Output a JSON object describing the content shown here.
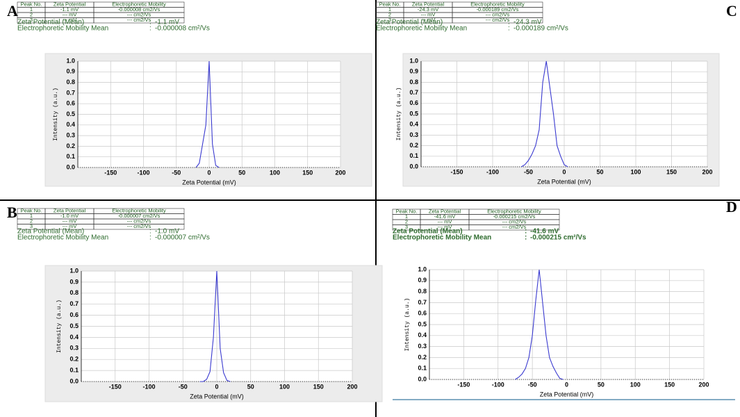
{
  "chart_data": [
    {
      "type": "line",
      "panel": "A",
      "table": {
        "header": [
          "Peak No.",
          "Zeta Potential",
          "Electrophoretic Mobility"
        ],
        "rows": [
          [
            "1",
            "-1.1 mV",
            "-0.000008 cm2/Vs"
          ],
          [
            "2",
            "--- mV",
            "--- cm2/Vs"
          ],
          [
            "3",
            "--- mV",
            "--- cm2/Vs"
          ]
        ]
      },
      "summary": [
        {
          "label": "Zeta Potential (Mean)",
          "separator": ":",
          "value": "-1.1 mV"
        },
        {
          "label": "Electrophoretic Mobility Mean",
          "separator": ":",
          "value": "-0.000008 cm²/Vs"
        }
      ],
      "xlabel": "Zeta Potential (mV)",
      "ylabel": "Intensity (a.u.)",
      "color": "#3a3ad0",
      "grid": true,
      "x": [
        -20,
        -15,
        -5,
        0,
        5,
        10,
        15
      ],
      "values": [
        0,
        0.04,
        0.4,
        1.0,
        0.22,
        0.02,
        0
      ],
      "xlim": [
        -200,
        200
      ],
      "xticks": [
        -150,
        -100,
        -50,
        0,
        50,
        100,
        150,
        200
      ],
      "ylim": [
        0,
        1
      ],
      "yticks": [
        {
          "value": 0,
          "label": "0.0"
        },
        {
          "value": 0.1,
          "label": "0.1"
        },
        {
          "value": 0.2,
          "label": "0.2"
        },
        {
          "value": 0.3,
          "label": "0.3"
        },
        {
          "value": 0.4,
          "label": "0.4"
        },
        {
          "value": 0.5,
          "label": "0.5"
        },
        {
          "value": 0.6,
          "label": "0.6"
        },
        {
          "value": 0.7,
          "label": "0.7"
        },
        {
          "value": 0.8,
          "label": "0.8"
        },
        {
          "value": 0.9,
          "label": "0.9"
        },
        {
          "value": 1,
          "label": "1.0"
        }
      ]
    },
    {
      "type": "line",
      "panel": "C",
      "table": {
        "header": [
          "Peak No.",
          "Zeta Potential",
          "Electrophoretic Mobility"
        ],
        "rows": [
          [
            "1",
            "-24.3 mV",
            "-0.000189 cm2/Vs"
          ],
          [
            "2",
            "--- mV",
            "--- cm2/Vs"
          ],
          [
            "3",
            "--- mV",
            "--- cm2/Vs"
          ]
        ]
      },
      "summary": [
        {
          "label": "Zeta Potential (Mean)",
          "separator": ":",
          "value": "-24.3 mV"
        },
        {
          "label": "Electrophoretic Mobility Mean",
          "separator": ":",
          "value": "-0.000189 cm²/Vs"
        }
      ],
      "xlabel": "Zeta Potential (mV)",
      "ylabel": "Intensity (a.u.)",
      "color": "#3a3ad0",
      "grid": true,
      "x": [
        -60,
        -55,
        -50,
        -45,
        -40,
        -35,
        -30,
        -25,
        -20,
        -15,
        -10,
        -5,
        0,
        5
      ],
      "values": [
        0,
        0.02,
        0.06,
        0.12,
        0.2,
        0.35,
        0.8,
        1.0,
        0.75,
        0.5,
        0.2,
        0.1,
        0.02,
        0
      ],
      "xlim": [
        -200,
        200
      ],
      "xticks": [
        -150,
        -100,
        -50,
        0,
        50,
        100,
        150,
        200
      ],
      "ylim": [
        0,
        1
      ],
      "yticks": [
        {
          "value": 0,
          "label": "0.0"
        },
        {
          "value": 0.1,
          "label": "0.1"
        },
        {
          "value": 0.2,
          "label": "0.2"
        },
        {
          "value": 0.3,
          "label": "0.3"
        },
        {
          "value": 0.4,
          "label": "0.4"
        },
        {
          "value": 0.5,
          "label": "0.5"
        },
        {
          "value": 0.6,
          "label": "0.6"
        },
        {
          "value": 0.7,
          "label": "0.7"
        },
        {
          "value": 0.8,
          "label": "0.8"
        },
        {
          "value": 0.9,
          "label": "0.9"
        },
        {
          "value": 1,
          "label": "1.0"
        }
      ]
    },
    {
      "type": "line",
      "panel": "B",
      "table": {
        "header": [
          "Peak No.",
          "Zeta Potential",
          "Electrophoretic Mobility"
        ],
        "rows": [
          [
            "1",
            "-1.0 mV",
            "-0.000007 cm2/Vs"
          ],
          [
            "2",
            "--- mV",
            "--- cm2/Vs"
          ],
          [
            "3",
            "--- mV",
            "--- cm2/Vs"
          ]
        ]
      },
      "summary": [
        {
          "label": "Zeta Potential (Mean)",
          "separator": ":",
          "value": "-1.0 mV"
        },
        {
          "label": "Electrophoretic Mobility Mean",
          "separator": ":",
          "value": "-0.000007 cm²/Vs"
        }
      ],
      "xlabel": "Zeta Potential (mV)",
      "ylabel": "Intensity (a.u.)",
      "color": "#3a3ad0",
      "grid": true,
      "x": [
        -25,
        -20,
        -15,
        -10,
        -5,
        0,
        5,
        10,
        15,
        20
      ],
      "values": [
        0,
        0,
        0.02,
        0.09,
        0.4,
        1.0,
        0.3,
        0.08,
        0.01,
        0
      ],
      "xlim": [
        -200,
        200
      ],
      "xticks": [
        -150,
        -100,
        -50,
        0,
        50,
        100,
        150,
        200
      ],
      "ylim": [
        0,
        1
      ],
      "yticks": [
        {
          "value": 0,
          "label": "0.0"
        },
        {
          "value": 0.1,
          "label": "0.1"
        },
        {
          "value": 0.2,
          "label": "0.2"
        },
        {
          "value": 0.3,
          "label": "0.3"
        },
        {
          "value": 0.4,
          "label": "0.4"
        },
        {
          "value": 0.5,
          "label": "0.5"
        },
        {
          "value": 0.6,
          "label": "0.6"
        },
        {
          "value": 0.7,
          "label": "0.7"
        },
        {
          "value": 0.8,
          "label": "0.8"
        },
        {
          "value": 0.9,
          "label": "0.9"
        },
        {
          "value": 1,
          "label": "1.0"
        }
      ]
    },
    {
      "type": "line",
      "panel": "D",
      "table": {
        "header": [
          "Peak No.",
          "Zeta Potential",
          "Electrophoretic Mobility"
        ],
        "rows": [
          [
            "1",
            "-41.6 mV",
            "-0.000215 cm2/Vs"
          ],
          [
            "2",
            "--- mV",
            "--- cm2/Vs"
          ],
          [
            "3",
            "--- mV",
            "--- cm2/Vs"
          ]
        ]
      },
      "summary": [
        {
          "label": "Zeta Potential (Mean)",
          "separator": ":",
          "value": "-41.6 mV"
        },
        {
          "label": "Electrophoretic Mobility Mean",
          "separator": ":",
          "value": "-0.000215 cm²/Vs"
        }
      ],
      "xlabel": "Zeta Potential (mV)",
      "ylabel": "Intensity (a.u.)",
      "color": "#3a3ad0",
      "grid": true,
      "x": [
        -75,
        -70,
        -65,
        -60,
        -55,
        -50,
        -45,
        -40,
        -35,
        -30,
        -25,
        -20,
        -15,
        -10,
        -5
      ],
      "values": [
        0,
        0.02,
        0.05,
        0.1,
        0.2,
        0.4,
        0.72,
        1.0,
        0.7,
        0.4,
        0.2,
        0.12,
        0.06,
        0.01,
        0
      ],
      "xlim": [
        -200,
        200
      ],
      "xticks": [
        -150,
        -100,
        -50,
        0,
        50,
        100,
        150,
        200
      ],
      "ylim": [
        0,
        1
      ],
      "yticks": [
        {
          "value": 0,
          "label": "0.0"
        },
        {
          "value": 0.1,
          "label": "0.1"
        },
        {
          "value": 0.2,
          "label": "0.2"
        },
        {
          "value": 0.3,
          "label": "0.3"
        },
        {
          "value": 0.4,
          "label": "0.4"
        },
        {
          "value": 0.5,
          "label": "0.5"
        },
        {
          "value": 0.6,
          "label": "0.6"
        },
        {
          "value": 0.7,
          "label": "0.7"
        },
        {
          "value": 0.8,
          "label": "0.8"
        },
        {
          "value": 0.9,
          "label": "0.9"
        },
        {
          "value": 1,
          "label": "1.0"
        }
      ]
    }
  ]
}
